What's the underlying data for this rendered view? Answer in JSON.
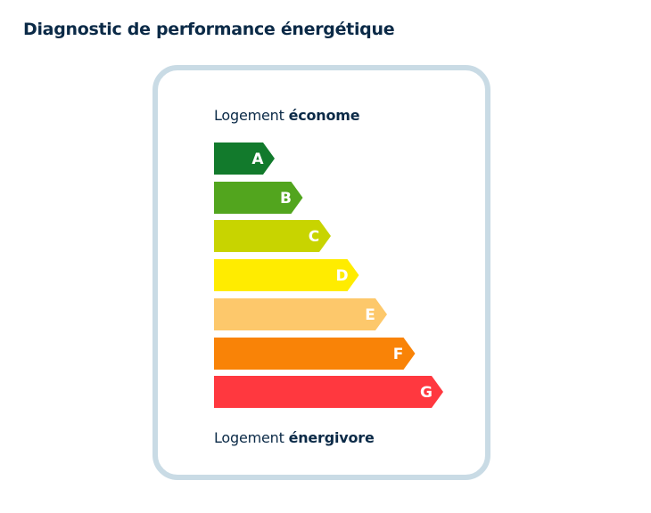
{
  "page": {
    "title": "Diagnostic de performance énergétique"
  },
  "card": {
    "top_label_prefix": "Logement ",
    "top_label_strong": "économe",
    "bottom_label_prefix": "Logement ",
    "bottom_label_strong": "énergivore"
  },
  "energy_scale": {
    "classes": [
      {
        "letter": "A",
        "color": "#127a2c",
        "level": 1
      },
      {
        "letter": "B",
        "color": "#52a51e",
        "level": 2
      },
      {
        "letter": "C",
        "color": "#c8d400",
        "level": 3
      },
      {
        "letter": "D",
        "color": "#ffec00",
        "level": 4
      },
      {
        "letter": "E",
        "color": "#fdc86b",
        "level": 5
      },
      {
        "letter": "F",
        "color": "#f98307",
        "level": 6
      },
      {
        "letter": "G",
        "color": "#ff383f",
        "level": 7
      }
    ]
  }
}
